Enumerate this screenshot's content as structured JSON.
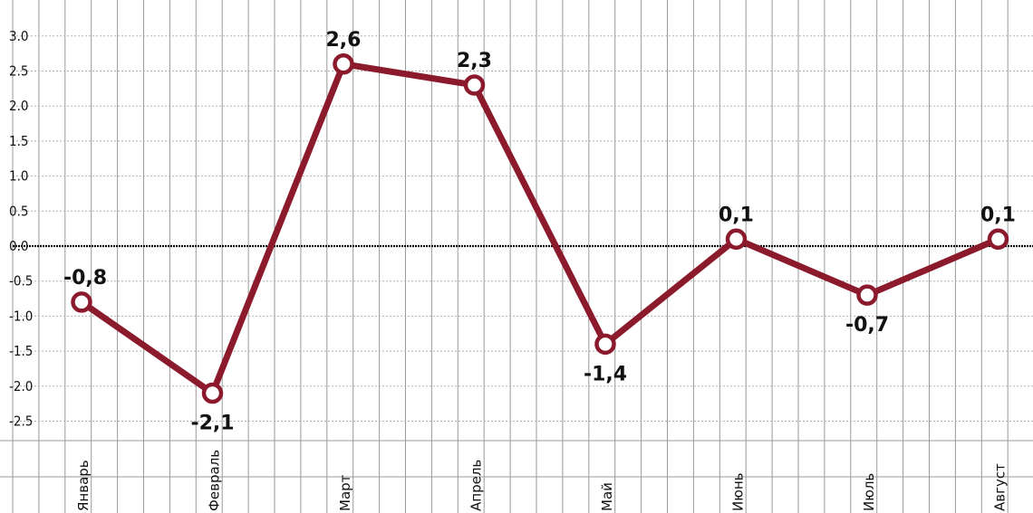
{
  "chart_data": {
    "type": "line",
    "title": "",
    "xlabel": "",
    "ylabel": "",
    "categories": [
      "Январь",
      "Февраль",
      "Март",
      "Апрель",
      "Май",
      "Июнь",
      "Июль",
      "Август"
    ],
    "series": [
      {
        "values": [
          -0.8,
          -2.1,
          2.6,
          2.3,
          -1.4,
          0.1,
          -0.7,
          0.1
        ]
      }
    ],
    "data_labels": [
      "-0,8",
      "-2,1",
      "2,6",
      "2,3",
      "-1,4",
      "0,1",
      "-0,7",
      "0,1"
    ],
    "yticks": [
      "3.0",
      "2.5",
      "2.0",
      "1.5",
      "1.0",
      "0.5",
      "0.0",
      "-0.5",
      "-1.0",
      "-1.5",
      "-2.0",
      "-2.5"
    ],
    "ylim": [
      -3.0,
      3.2
    ],
    "grid": true,
    "zero_line": true,
    "colors": {
      "line": "#8b1a2c",
      "grid": "#9a9a9a",
      "grid_dotted": "#b0b0b0",
      "zero_line": "#000000",
      "marker_fill": "#ffffff"
    }
  }
}
